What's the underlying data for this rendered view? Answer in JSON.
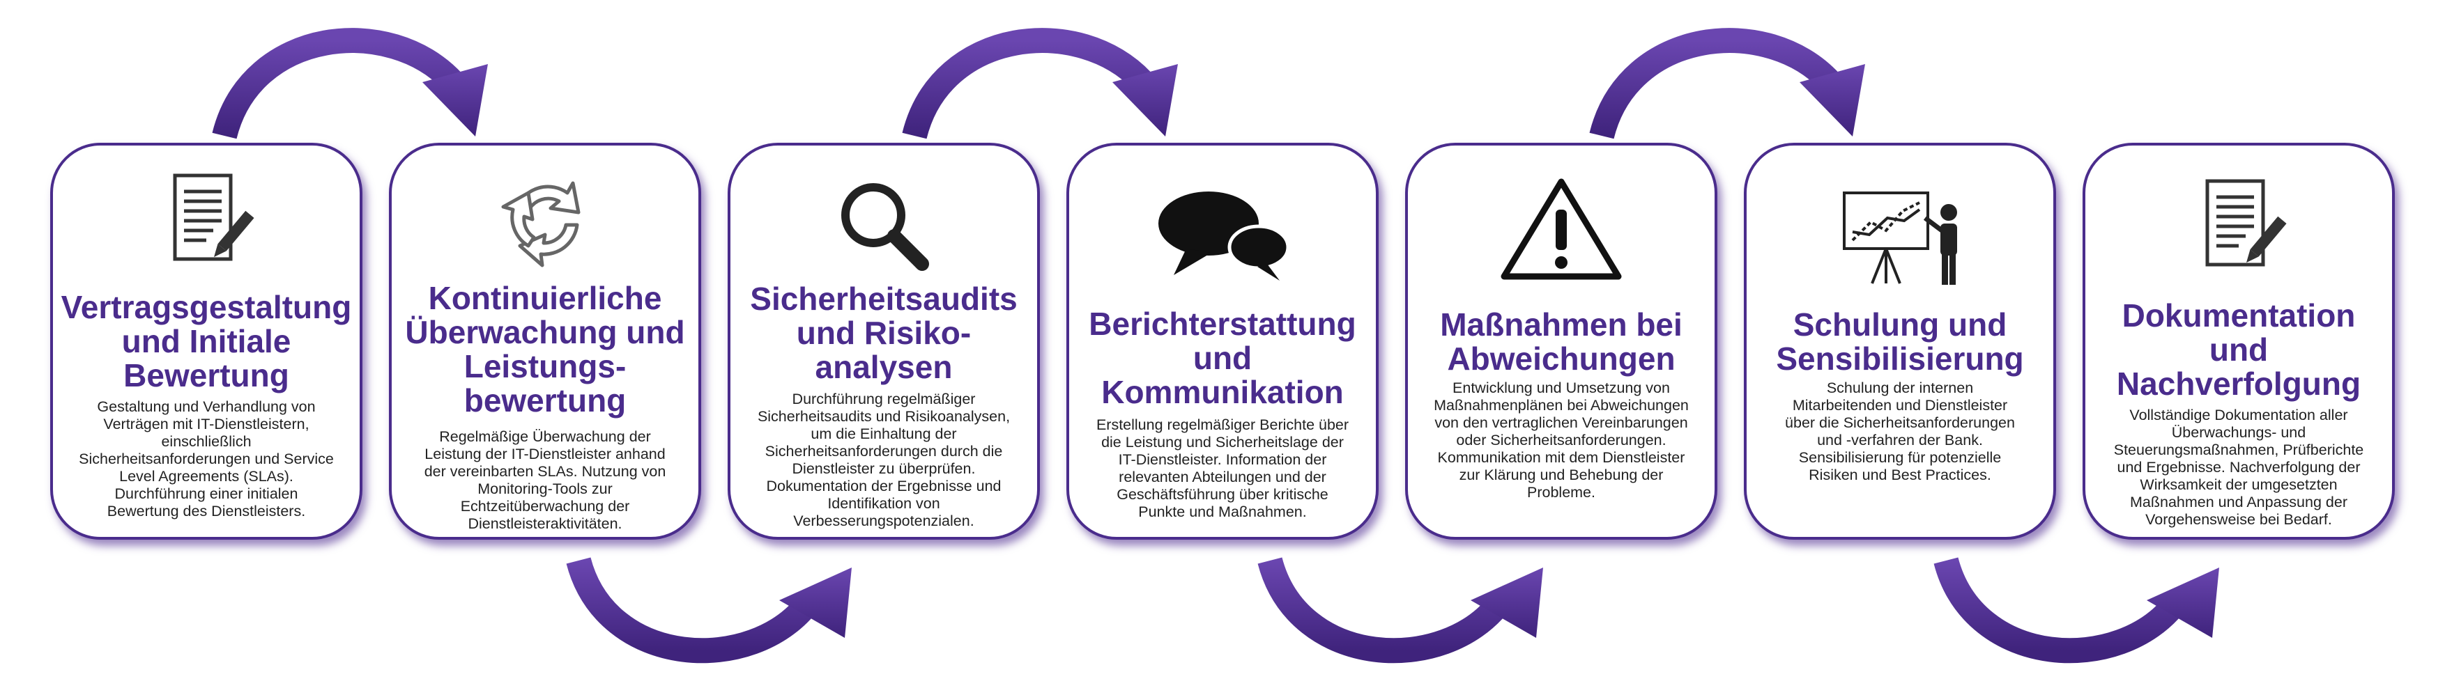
{
  "colors": {
    "accent": "#4a2c8c",
    "arrow": "#5b3a9e",
    "text": "#222222"
  },
  "steps": [
    {
      "icon": "document-pen-icon",
      "title": "Vertragsgestaltung\nund Initiale\nBewertung",
      "description": "Gestaltung und Verhandlung von\nVerträgen mit IT-Dienstleistern,\neinschließlich\nSicherheitsanforderungen und Service\nLevel Agreements (SLAs).\nDurchführung einer initialen\nBewertung des Dienstleisters."
    },
    {
      "icon": "recycle-arrows-icon",
      "title": "Kontinuierliche\nÜberwachung und\nLeistungs-\nbewertung",
      "description": "Regelmäßige Überwachung der\nLeistung der IT-Dienstleister anhand\nder vereinbarten SLAs. Nutzung von\nMonitoring-Tools zur\nEchtzeitüberwachung der\nDienstleisteraktivitäten."
    },
    {
      "icon": "magnifier-icon",
      "title": "Sicherheitsaudits\nund Risiko-\nanalysen",
      "description": "Durchführung regelmäßiger\nSicherheitsaudits und Risikoanalysen,\num die Einhaltung der\nSicherheitsanforderungen durch die\nDienstleister zu überprüfen.\nDokumentation der Ergebnisse und\nIdentifikation von\nVerbesserungspotenzialen."
    },
    {
      "icon": "speech-bubbles-icon",
      "title": "Berichterstattung\nund\nKommunikation",
      "description": "Erstellung regelmäßiger Berichte über\ndie Leistung und Sicherheitslage der\nIT-Dienstleister. Information der\nrelevanten Abteilungen und der\nGeschäftsführung über kritische\nPunkte und Maßnahmen."
    },
    {
      "icon": "warning-triangle-icon",
      "title": "Maßnahmen bei\nAbweichungen",
      "description": "Entwicklung und Umsetzung von\nMaßnahmenplänen bei Abweichungen\nvon den vertraglichen Vereinbarungen\noder Sicherheitsanforderungen.\nKommunikation mit dem Dienstleister\nzur Klärung und Behebung der\nProbleme."
    },
    {
      "icon": "presenter-chart-icon",
      "title": "Schulung und\nSensibilisierung",
      "description": "Schulung der internen\nMitarbeitenden und Dienstleister\nüber die Sicherheitsanforderungen\nund -verfahren der Bank.\nSensibilisierung für potenzielle\nRisiken und Best Practices."
    },
    {
      "icon": "document-pen-icon",
      "title": "Dokumentation\nund\nNachverfolgung",
      "description": "Vollständige Dokumentation aller\nÜberwachungs- und\nSteuerungsmaßnahmen, Prüfberichte\nund Ergebnisse. Nachverfolgung der\nWirksamkeit der umgesetzten\nMaßnahmen und Anpassung der\nVorgehensweise bei Bedarf."
    }
  ]
}
